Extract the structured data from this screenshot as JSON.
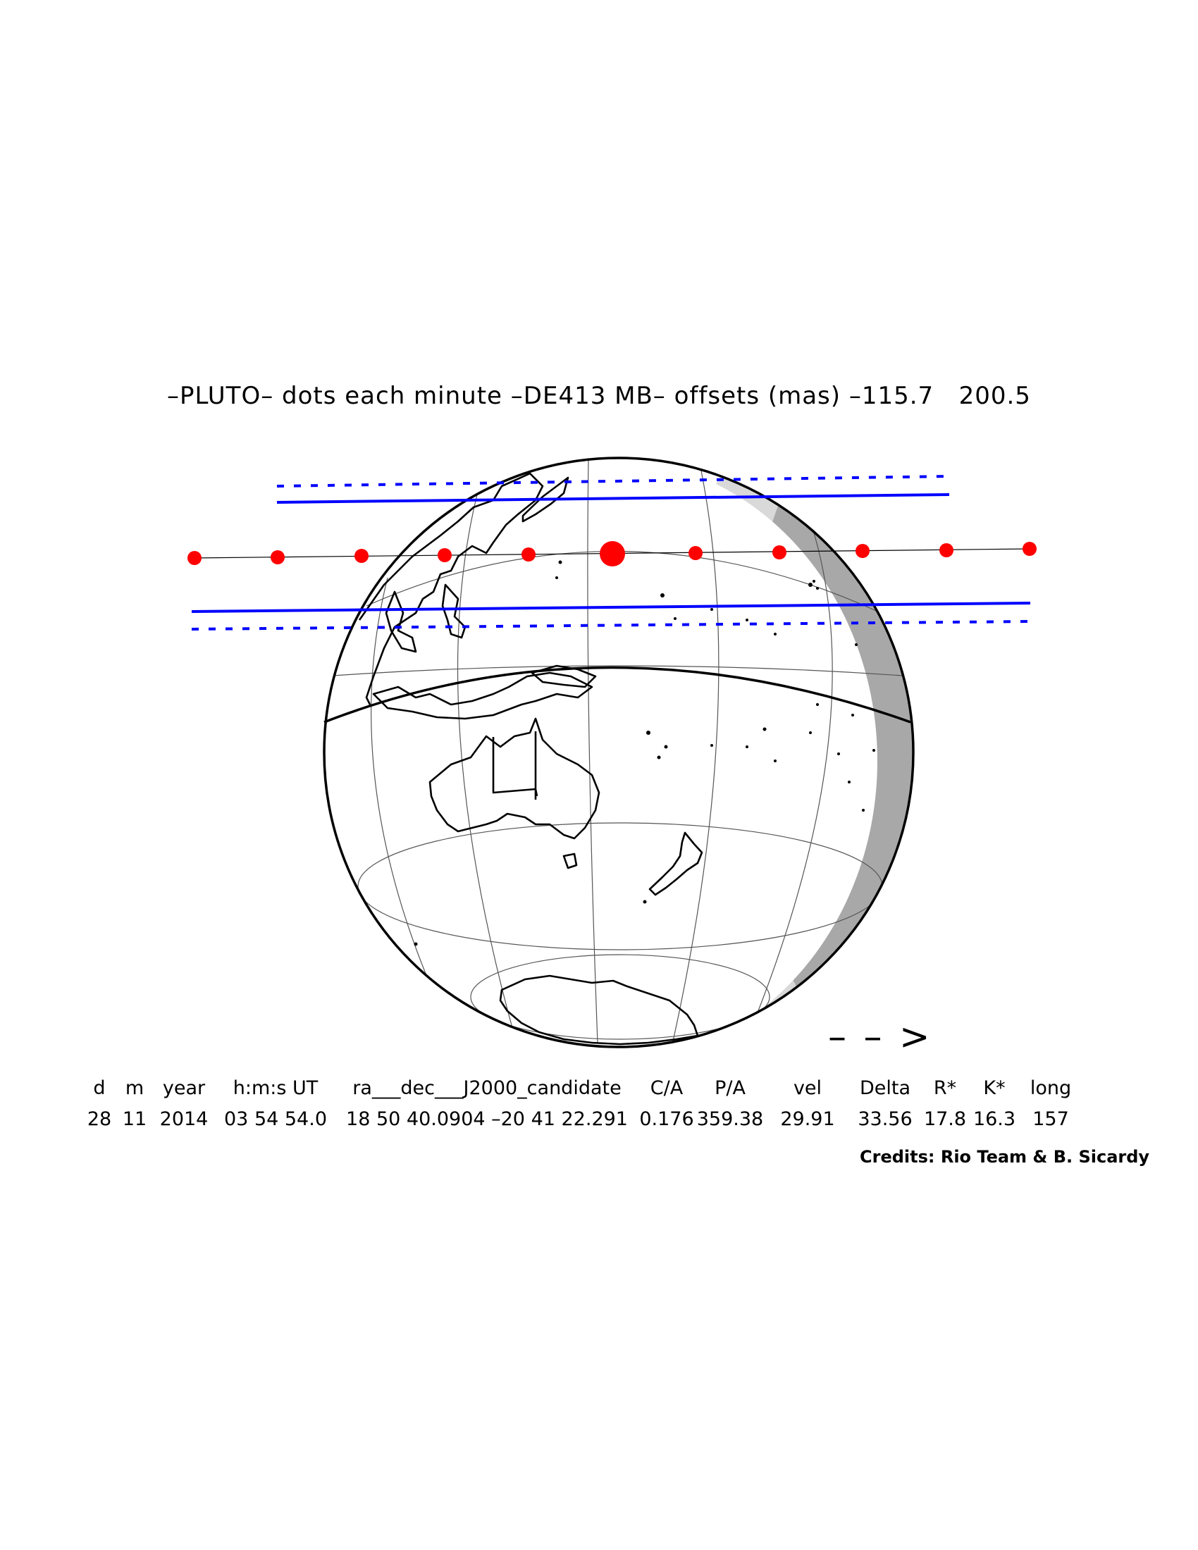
{
  "header": {
    "title": "–PLUTO– dots each minute –DE413 MB– offsets (mas) –115.7   200.5"
  },
  "map": {
    "object": "PLUTO",
    "ephemeris": "DE413 MB",
    "offsets_mas": [
      -115.7,
      200.5
    ],
    "colors": {
      "dots": "#ff0000",
      "path_limits": "#0000ff",
      "coastlines": "#000000",
      "graticule": "#555555",
      "night_shade_light": "#d9d9d9",
      "night_shade_dark": "#a8a8a8"
    },
    "direction_arrow": "– – >"
  },
  "params": {
    "headers": [
      "d",
      "m",
      "year",
      "h:m:s UT",
      "ra___dec___J2000_candidate",
      "C/A",
      "P/A",
      "vel",
      "Delta",
      "R*",
      "K*",
      "long"
    ],
    "values": [
      "28",
      "11",
      "2014",
      "03 54 54.0",
      "18 50 40.0904 –20 41 22.291",
      "0.176",
      "359.38",
      "29.91",
      "33.56",
      "17.8",
      "16.3",
      "157"
    ]
  },
  "credits": "Credits: Rio Team & B. Sicardy"
}
